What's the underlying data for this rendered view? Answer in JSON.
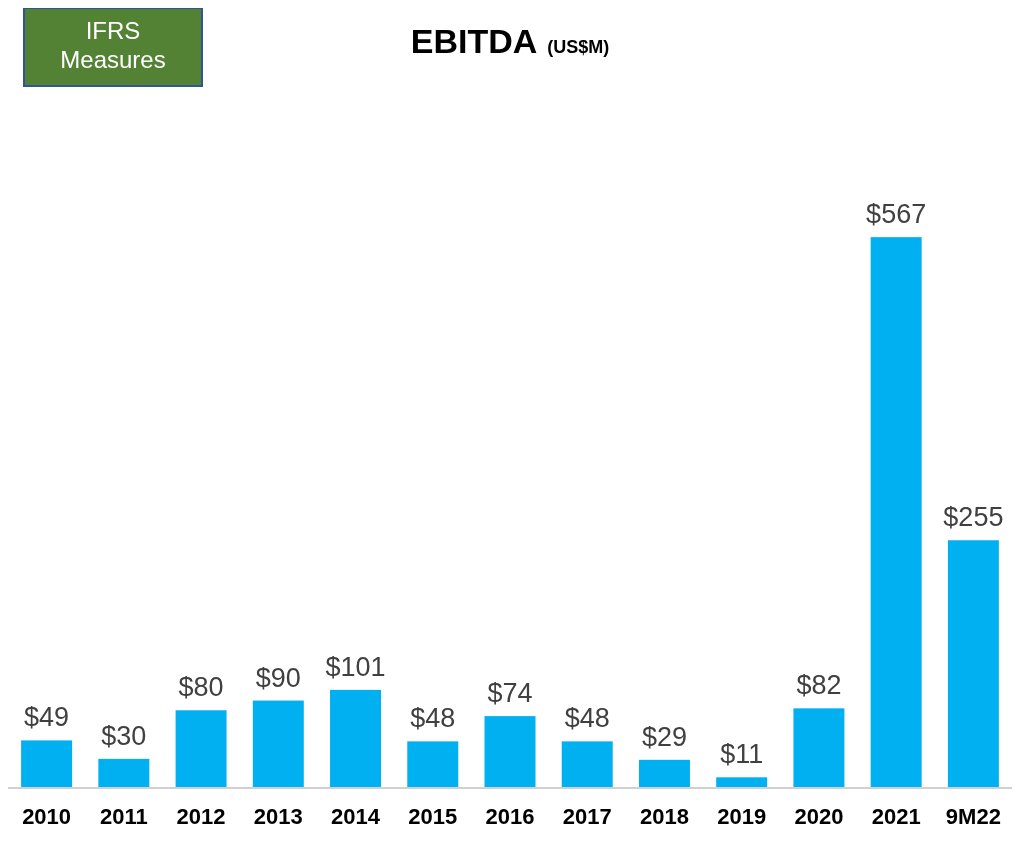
{
  "chart_data": {
    "type": "bar",
    "title": "EBITDA",
    "subtitle": "(US$M)",
    "annotations": [
      "IFRS Measures"
    ],
    "categories": [
      "2010",
      "2011",
      "2012",
      "2013",
      "2014",
      "2015",
      "2016",
      "2017",
      "2018",
      "2019",
      "2020",
      "2021",
      "9M22"
    ],
    "values": [
      49,
      30,
      80,
      90,
      101,
      48,
      74,
      48,
      29,
      11,
      82,
      567,
      255
    ],
    "value_labels": [
      "$49",
      "$30",
      "$80",
      "$90",
      "$101",
      "$48",
      "$74",
      "$48",
      "$29",
      "$11",
      "$82",
      "$567",
      "$255"
    ],
    "color": "#00b0f0"
  }
}
